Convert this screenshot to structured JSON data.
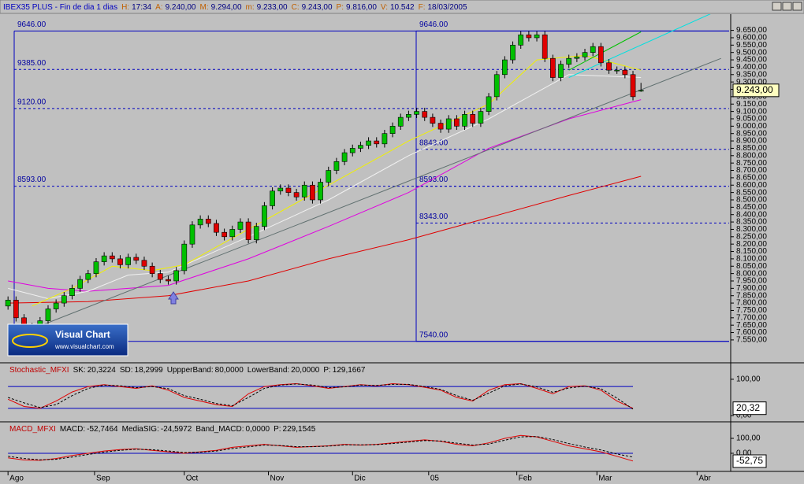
{
  "header": {
    "title": "IBEX35 PLUS - Fin de dia 1 dias",
    "fields": [
      {
        "label": "H:",
        "value": "17:34"
      },
      {
        "label": "A:",
        "value": "9.240,00"
      },
      {
        "label": "M:",
        "value": "9.294,00"
      },
      {
        "label": "m:",
        "value": "9.233,00"
      },
      {
        "label": "C:",
        "value": "9.243,00"
      },
      {
        "label": "P:",
        "value": "9.816,00"
      },
      {
        "label": "V:",
        "value": "10.542"
      },
      {
        "label": "F:",
        "value": "18/03/2005"
      }
    ]
  },
  "logo": {
    "name": "Visual Chart",
    "url": "www.visualchart.com"
  },
  "chart_data": [
    {
      "type": "candlestick",
      "xlim": [
        -1,
        90
      ],
      "ylim": [
        7400,
        9760
      ],
      "open": [
        7780,
        7820,
        7700,
        7640,
        7620,
        7680,
        7760,
        7800,
        7850,
        7900,
        7960,
        8000,
        8080,
        8120,
        8100,
        8060,
        8110,
        8090,
        8050,
        8000,
        7960,
        7950,
        8020,
        8200,
        8330,
        8370,
        8340,
        8280,
        8250,
        8300,
        8350,
        8230,
        8320,
        8460,
        8560,
        8580,
        8550,
        8520,
        8600,
        8500,
        8620,
        8700,
        8760,
        8820,
        8850,
        8870,
        8900,
        8880,
        8950,
        9000,
        9060,
        9080,
        9100,
        9060,
        9020,
        8980,
        9050,
        9000,
        9080,
        9020,
        9100,
        9200,
        9350,
        9450,
        9550,
        9620,
        9600,
        9620,
        9460,
        9330,
        9420,
        9460,
        9470,
        9500,
        9540,
        9430,
        9380,
        9380,
        9350,
        9240
      ],
      "high": [
        7845,
        7845,
        7725,
        7665,
        7705,
        7785,
        7825,
        7875,
        7925,
        7985,
        8025,
        8105,
        8145,
        8145,
        8125,
        8135,
        8135,
        8115,
        8075,
        8025,
        7985,
        8045,
        8225,
        8355,
        8395,
        8395,
        8365,
        8305,
        8325,
        8375,
        8375,
        8345,
        8485,
        8585,
        8605,
        8605,
        8575,
        8625,
        8625,
        8645,
        8725,
        8785,
        8845,
        8875,
        8895,
        8925,
        8925,
        8975,
        9025,
        9085,
        9105,
        9125,
        9125,
        9085,
        9045,
        9075,
        9075,
        9105,
        9105,
        9125,
        9225,
        9375,
        9475,
        9575,
        9645,
        9645,
        9645,
        9645,
        9485,
        9445,
        9485,
        9495,
        9525,
        9565,
        9565,
        9455,
        9405,
        9405,
        9375,
        9294
      ],
      "low": [
        7755,
        7675,
        7615,
        7595,
        7595,
        7655,
        7735,
        7775,
        7825,
        7875,
        7935,
        7975,
        8055,
        8075,
        8035,
        8035,
        8065,
        8025,
        7975,
        7935,
        7925,
        7925,
        7995,
        8175,
        8305,
        8315,
        8255,
        8225,
        8225,
        8275,
        8205,
        8205,
        8295,
        8435,
        8535,
        8525,
        8495,
        8495,
        8475,
        8475,
        8595,
        8675,
        8735,
        8795,
        8825,
        8845,
        8855,
        8855,
        8925,
        8975,
        9035,
        9055,
        9035,
        8995,
        8955,
        8955,
        8975,
        8975,
        8995,
        8995,
        9075,
        9175,
        9325,
        9425,
        9525,
        9575,
        9575,
        9435,
        9305,
        9305,
        9395,
        9435,
        9445,
        9475,
        9405,
        9355,
        9355,
        9325,
        9175,
        9233
      ],
      "close": [
        7820,
        7700,
        7640,
        7620,
        7680,
        7760,
        7800,
        7850,
        7900,
        7960,
        8000,
        8080,
        8120,
        8100,
        8060,
        8110,
        8090,
        8050,
        8000,
        7960,
        7950,
        8020,
        8200,
        8330,
        8370,
        8340,
        8280,
        8250,
        8300,
        8350,
        8230,
        8320,
        8460,
        8560,
        8580,
        8550,
        8520,
        8600,
        8500,
        8620,
        8700,
        8760,
        8820,
        8850,
        8870,
        8900,
        8880,
        8950,
        9000,
        9060,
        9080,
        9100,
        9060,
        9020,
        8980,
        9050,
        9000,
        9080,
        9020,
        9100,
        9200,
        9350,
        9450,
        9550,
        9620,
        9600,
        9620,
        9460,
        9330,
        9420,
        9460,
        9470,
        9500,
        9540,
        9430,
        9380,
        9380,
        9350,
        9200,
        9243
      ],
      "up_color": "#00c000",
      "down_color": "#e00000",
      "series": [
        {
          "color": "#e00000",
          "x": [
            0,
            10,
            20,
            30,
            40,
            50,
            60,
            70,
            79
          ],
          "values": [
            7800,
            7810,
            7850,
            7950,
            8100,
            8230,
            8380,
            8530,
            8660
          ]
        },
        {
          "color": "#e000e0",
          "x": [
            0,
            5,
            10,
            15,
            20,
            30,
            40,
            50,
            60,
            70,
            79
          ],
          "values": [
            7950,
            7900,
            7880,
            7900,
            7920,
            8100,
            8320,
            8550,
            8850,
            9050,
            9180
          ]
        },
        {
          "color": "#f0f0f0",
          "x": [
            0,
            5,
            10,
            15,
            20,
            30,
            40,
            50,
            60,
            70,
            79
          ],
          "values": [
            7900,
            7830,
            7880,
            7990,
            8010,
            8250,
            8500,
            8800,
            9050,
            9350,
            9330
          ]
        },
        {
          "color": "#f0f000",
          "x": [
            3,
            8,
            13,
            18,
            22,
            30,
            40,
            50,
            60,
            66,
            72,
            79
          ],
          "values": [
            7780,
            7900,
            8050,
            8020,
            8060,
            8300,
            8600,
            8900,
            9150,
            9450,
            9480,
            9380
          ]
        },
        {
          "color": "#607070",
          "x": [
            0,
            89
          ],
          "values": [
            7560,
            9460
          ]
        },
        {
          "color": "#00e0e0",
          "x": [
            70,
            88
          ],
          "values": [
            9330,
            9770
          ]
        },
        {
          "color": "#00c000",
          "x": [
            70,
            79
          ],
          "values": [
            9380,
            9640
          ]
        }
      ],
      "levels": [
        {
          "value": 9646,
          "label": "9646.00"
        },
        {
          "value": 9385,
          "label": "9385.00"
        },
        {
          "value": 9120,
          "label": "9120.00"
        },
        {
          "value": 8593,
          "label": "8593.00"
        }
      ],
      "levels_right": [
        {
          "value": 9646,
          "label": "9646.00"
        },
        {
          "value": 8843,
          "label": "8843.00"
        },
        {
          "value": 8593,
          "label": "8593.00"
        },
        {
          "value": 8343,
          "label": "8343.00"
        },
        {
          "value": 7540,
          "label": "7540.00"
        }
      ],
      "last_price": {
        "value": 9243,
        "label": "9.243,00"
      },
      "yticks": [
        {
          "value": 7550,
          "label": "7.550,00"
        },
        {
          "value": 7600,
          "label": "7.600,00"
        },
        {
          "value": 7650,
          "label": "7.650,00"
        },
        {
          "value": 7700,
          "label": "7.700,00"
        },
        {
          "value": 7750,
          "label": "7.750,00"
        },
        {
          "value": 7800,
          "label": "7.800,00"
        },
        {
          "value": 7850,
          "label": "7.850,00"
        },
        {
          "value": 7900,
          "label": "7.900,00"
        },
        {
          "value": 7950,
          "label": "7.950,00"
        },
        {
          "value": 8000,
          "label": "8.000,00"
        },
        {
          "value": 8050,
          "label": "8.050,00"
        },
        {
          "value": 8100,
          "label": "8.100,00"
        },
        {
          "value": 8150,
          "label": "8.150,00"
        },
        {
          "value": 8200,
          "label": "8.200,00"
        },
        {
          "value": 8250,
          "label": "8.250,00"
        },
        {
          "value": 8300,
          "label": "8.300,00"
        },
        {
          "value": 8350,
          "label": "8.350,00"
        },
        {
          "value": 8400,
          "label": "8.400,00"
        },
        {
          "value": 8450,
          "label": "8.450,00"
        },
        {
          "value": 8500,
          "label": "8.500,00"
        },
        {
          "value": 8550,
          "label": "8.550,00"
        },
        {
          "value": 8600,
          "label": "8.600,00"
        },
        {
          "value": 8650,
          "label": "8.650,00"
        },
        {
          "value": 8700,
          "label": "8.700,00"
        },
        {
          "value": 8750,
          "label": "8.750,00"
        },
        {
          "value": 8800,
          "label": "8.800,00"
        },
        {
          "value": 8850,
          "label": "8.850,00"
        },
        {
          "value": 8900,
          "label": "8.900,00"
        },
        {
          "value": 8950,
          "label": "8.950,00"
        },
        {
          "value": 9000,
          "label": "9.000,00"
        },
        {
          "value": 9050,
          "label": "9.050,00"
        },
        {
          "value": 9100,
          "label": "9.100,00"
        },
        {
          "value": 9150,
          "label": "9.150,00"
        },
        {
          "value": 9200,
          "label": "9.200,00"
        },
        {
          "value": 9250,
          "label": "9.250,00"
        },
        {
          "value": 9300,
          "label": "9.300,00"
        },
        {
          "value": 9350,
          "label": "9.350,00"
        },
        {
          "value": 9400,
          "label": "9.400,00"
        },
        {
          "value": 9450,
          "label": "9.450,00"
        },
        {
          "value": 9500,
          "label": "9.500,00"
        },
        {
          "value": 9550,
          "label": "9.550,00"
        },
        {
          "value": 9600,
          "label": "9.600,00"
        },
        {
          "value": 9650,
          "label": "9.650,00"
        }
      ]
    },
    {
      "type": "line",
      "title": "Stochastic_MFXI",
      "stats": [
        {
          "label": "SK:",
          "value": "20,3224"
        },
        {
          "label": "SD:",
          "value": "18,2999"
        },
        {
          "label": "UppperBand:",
          "value": "80,0000"
        },
        {
          "label": "LowerBand:",
          "value": "20,0000"
        },
        {
          "label": "P:",
          "value": "129,1667"
        }
      ],
      "xlim": [
        -1,
        90
      ],
      "ylim": [
        -15,
        141
      ],
      "yticks": [
        {
          "value": 100,
          "label": "100,00"
        },
        {
          "value": 0,
          "label": "0,00"
        }
      ],
      "bands": [
        80,
        20
      ],
      "x": [
        0,
        2,
        4,
        6,
        8,
        10,
        12,
        14,
        16,
        18,
        20,
        22,
        24,
        26,
        28,
        30,
        32,
        34,
        36,
        38,
        40,
        42,
        44,
        46,
        48,
        50,
        52,
        54,
        56,
        58,
        60,
        62,
        64,
        66,
        68,
        70,
        72,
        74,
        76,
        78
      ],
      "series": [
        {
          "color": "#e00000",
          "style": "solid",
          "values": [
            45,
            25,
            20,
            40,
            65,
            80,
            85,
            80,
            75,
            82,
            70,
            50,
            40,
            30,
            25,
            60,
            80,
            85,
            88,
            82,
            75,
            80,
            85,
            82,
            88,
            85,
            78,
            70,
            50,
            40,
            70,
            85,
            88,
            75,
            60,
            80,
            82,
            70,
            40,
            20
          ]
        },
        {
          "color": "#000000",
          "style": "dashed",
          "values": [
            50,
            35,
            22,
            30,
            55,
            75,
            84,
            82,
            77,
            80,
            74,
            55,
            45,
            33,
            27,
            50,
            75,
            84,
            87,
            84,
            77,
            79,
            84,
            83,
            86,
            86,
            80,
            72,
            55,
            42,
            62,
            82,
            87,
            79,
            64,
            76,
            81,
            74,
            48,
            18
          ]
        }
      ],
      "last_value": {
        "value": 20.32,
        "label": "20,32"
      }
    },
    {
      "type": "line",
      "title": "MACD_MFXI",
      "stats": [
        {
          "label": "MACD:",
          "value": "-52,7464"
        },
        {
          "label": "MediaSIG:",
          "value": "-24,5972"
        },
        {
          "label": "Band_MACD:",
          "value": "0,0000"
        },
        {
          "label": "P:",
          "value": "229,1545"
        }
      ],
      "xlim": [
        -1,
        90
      ],
      "ylim": [
        -116,
        200
      ],
      "yticks": [
        {
          "value": 100,
          "label": "100,00"
        },
        {
          "value": 0,
          "label": "0,00"
        }
      ],
      "bands": [
        0
      ],
      "x": [
        0,
        2,
        4,
        6,
        8,
        10,
        12,
        14,
        16,
        18,
        20,
        22,
        24,
        26,
        28,
        30,
        32,
        34,
        36,
        38,
        40,
        42,
        44,
        46,
        48,
        50,
        52,
        54,
        56,
        58,
        60,
        62,
        64,
        66,
        68,
        70,
        72,
        74,
        76,
        78
      ],
      "series": [
        {
          "color": "#e00000",
          "style": "solid",
          "values": [
            -30,
            -45,
            -47,
            -35,
            -15,
            0,
            15,
            25,
            30,
            20,
            10,
            0,
            10,
            20,
            40,
            50,
            60,
            50,
            40,
            45,
            50,
            60,
            55,
            60,
            70,
            80,
            90,
            80,
            60,
            50,
            70,
            100,
            120,
            110,
            80,
            50,
            30,
            10,
            -20,
            -52
          ]
        },
        {
          "color": "#000000",
          "style": "dashed",
          "values": [
            -20,
            -35,
            -44,
            -40,
            -25,
            -8,
            8,
            20,
            27,
            24,
            15,
            5,
            7,
            15,
            32,
            43,
            55,
            52,
            44,
            44,
            48,
            56,
            56,
            58,
            65,
            75,
            85,
            82,
            68,
            55,
            62,
            88,
            110,
            112,
            92,
            65,
            42,
            22,
            -5,
            -25
          ]
        }
      ],
      "last_value": {
        "value": -52.75,
        "label": "-52,75"
      },
      "xticks": [
        {
          "value": 0,
          "label": "Ago"
        },
        {
          "value": 10.8,
          "label": "Sep"
        },
        {
          "value": 22,
          "label": "Oct"
        },
        {
          "value": 32.5,
          "label": "Nov"
        },
        {
          "value": 43,
          "label": "Dic"
        },
        {
          "value": 52.5,
          "label": "05"
        },
        {
          "value": 63.5,
          "label": "Feb"
        },
        {
          "value": 73.5,
          "label": "Mar"
        },
        {
          "value": 86,
          "label": "Abr"
        }
      ]
    }
  ]
}
